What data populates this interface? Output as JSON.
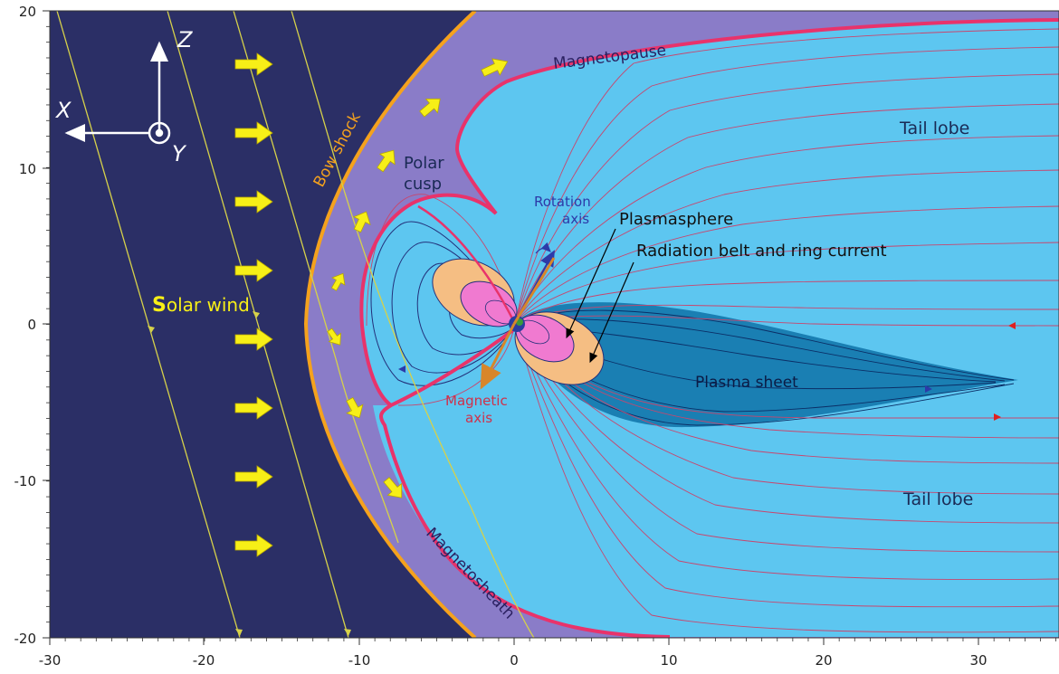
{
  "axes": {
    "x_ticks": [
      "-30",
      "-20",
      "-10",
      "0",
      "10",
      "20",
      "30"
    ],
    "y_ticks": [
      "20",
      "10",
      "0",
      "-10",
      "-20"
    ]
  },
  "labels": {
    "solar_wind_initial": "S",
    "solar_wind_rest": "olar wind",
    "bow_shock": "Bow shock",
    "magnetopause": "Magnetopause",
    "magnetosheath": "Magnetosheath",
    "tail_lobe_top": "Tail lobe",
    "tail_lobe_bottom": "Tail lobe",
    "polar_cusp_line1": "Polar",
    "polar_cusp_line2": "cusp",
    "rotation_axis_line1": "Rotation",
    "rotation_axis_line2": "axis",
    "magnetic_axis_line1": "Magnetic",
    "magnetic_axis_line2": "axis",
    "plasmasphere": "Plasmasphere",
    "radiation_belt": "Radiation belt and ring current",
    "plasma_sheet": "Plasma sheet"
  },
  "coordinate_axes": {
    "x": "X",
    "y": "Y",
    "z": "Z"
  },
  "colors": {
    "solar_wind_bg": "#2b2f66",
    "magnetosheath": "#8a7cc8",
    "magnetosphere": "#5dc6f0",
    "plasma_sheet": "#1a7fb3",
    "plasmasphere": "#f07ad0",
    "radiation_belt": "#f5be83",
    "bow_shock": "#f5a21d",
    "magnetopause": "#e8336b",
    "flow_arrows": "#f7ef17",
    "field_lines": "#c8466e"
  }
}
